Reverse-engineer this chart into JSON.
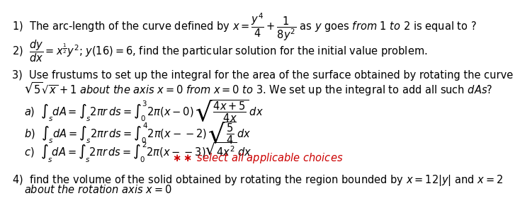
{
  "background_color": "#ffffff",
  "fs": 10.5,
  "red_color": "#cc0000",
  "line1": "1)  The arc-length of the curve defined by $x = \\dfrac{y^4}{4} + \\dfrac{1}{8y^2}$ as $y$ goes $from$ 1 $to$ 2 is equal to ?",
  "line2": "2)  $\\dfrac{dy}{dx} = x^{\\frac{1}{2}}y^2$; $y(16) = 6$, find the particular solution for the initial value problem.",
  "line3a": "3)  Use frustums to set up the integral for the area of the surface obtained by rotating the curve",
  "line3b": "     $\\sqrt{5}\\sqrt{x} + 1$ $about$ $the$ $axis$ $x = 0$ $from$ $x = 0$ $to$ 3. We set up the integral to add all such $\\mathbf{\\mathit{dAs}}$?",
  "line_a": "     $a)$  $\\int_s dA = \\int_s 2\\pi r\\,ds = \\int_0^3 2\\pi(x-0)\\,\\sqrt{\\dfrac{4x+5}{4x}}\\,dx$",
  "line_b": "     $b)$  $\\int_s dA = \\int_s 2\\pi r\\,ds = \\int_0^4 2\\pi(x--2)\\,\\sqrt{\\dfrac{5}{4}}\\,dx$",
  "line_c": "     $c)$  $\\int_s dA = \\int_s 2\\pi r\\,ds = \\int_0^2 2\\pi(x--3)\\sqrt{4x^2}\\,dx$",
  "line_red": "$**$ $\\mathbf{\\mathit{select\\ all\\ applicable\\ choices}}$",
  "line4a": "4)  find the volume of the solid obtained by rotating the region bounded by $x = 12|y|$ and $x = 2$",
  "line4b": "     $about$ $the$ $rotation$ $axis$ $x = 0$"
}
